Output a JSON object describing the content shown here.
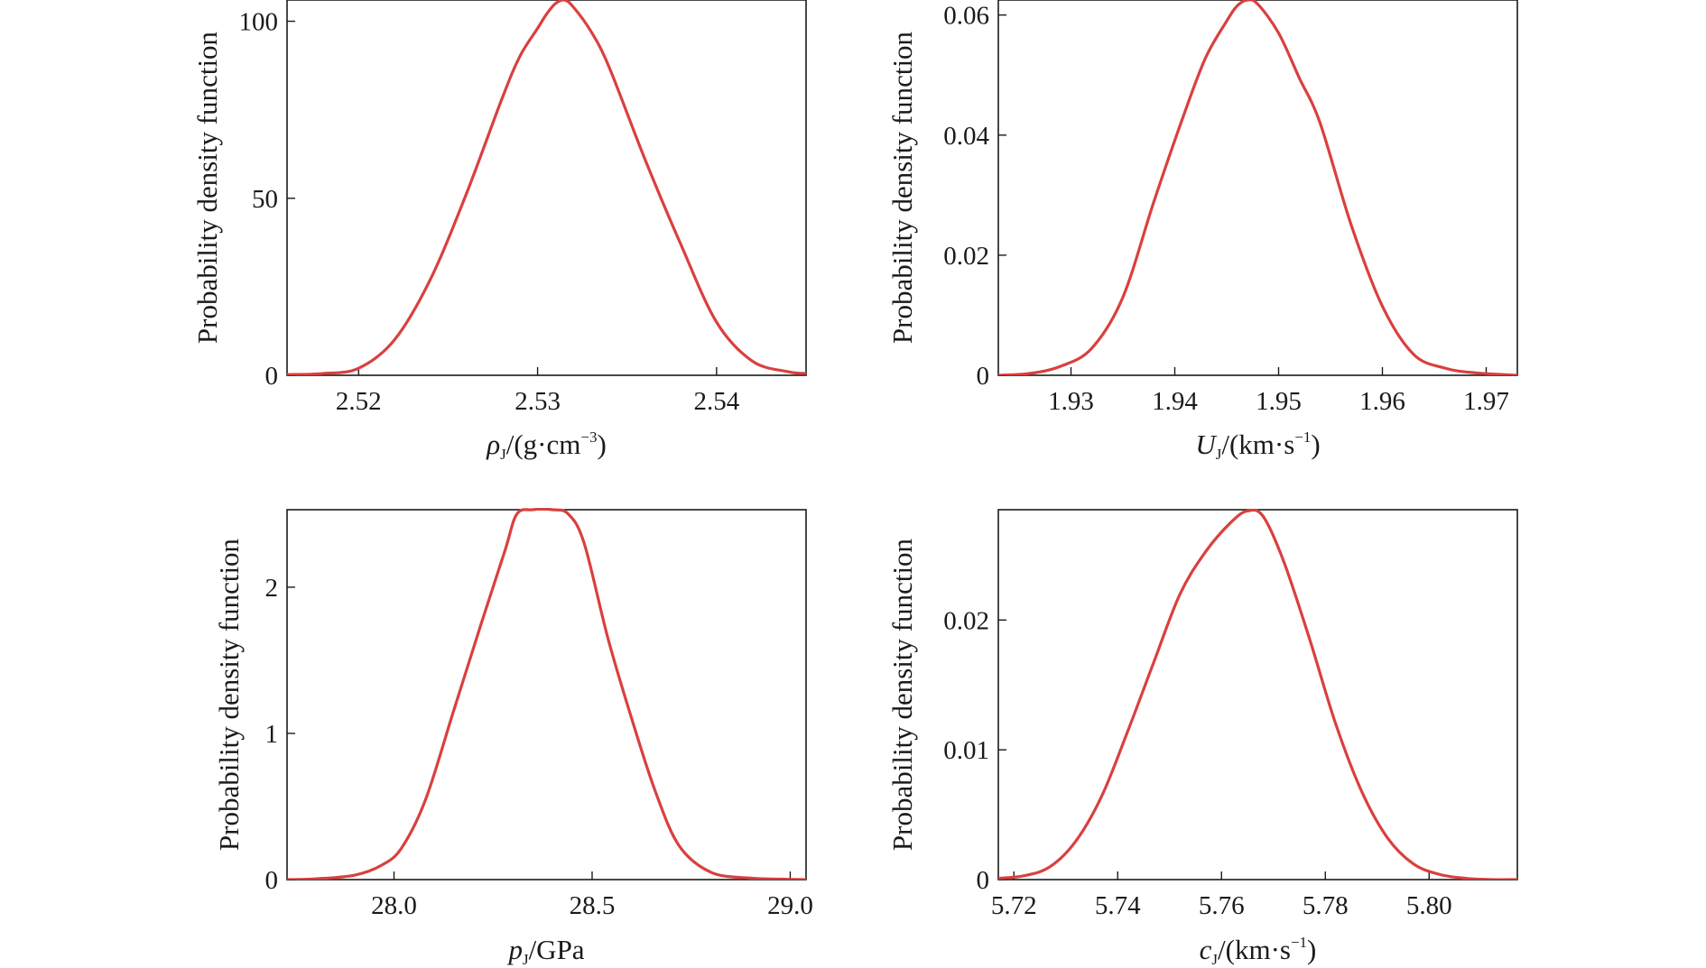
{
  "chart_data": [
    {
      "type": "line",
      "ylabel": "Probability density function",
      "xlabel_var": "ρ",
      "xlabel_sub": "J",
      "xlabel_pre": "/(g·cm",
      "xlabel_sup": "−3",
      "xlabel_post": ")",
      "xlim": [
        2.516,
        2.545
      ],
      "ylim": [
        0,
        106
      ],
      "xticks": [
        2.52,
        2.53,
        2.54
      ],
      "xtick_labels": [
        "2.52",
        "2.53",
        "2.54"
      ],
      "yticks": [
        0,
        50,
        100
      ],
      "ytick_labels": [
        "0",
        "50",
        "100"
      ],
      "line_color": "#d9403f",
      "series": [
        {
          "x": [
            2.516,
            2.518,
            2.52,
            2.522,
            2.524,
            2.526,
            2.528,
            2.529,
            2.53,
            2.5305,
            2.531,
            2.5315,
            2.532,
            2.533,
            2.534,
            2.536,
            2.538,
            2.54,
            2.542,
            2.544,
            2.545
          ],
          "y": [
            0.2,
            0.5,
            2,
            10,
            27,
            51,
            78,
            90,
            98,
            102,
            105,
            106,
            104,
            97,
            87,
            61,
            37,
            15,
            4,
            1,
            0.5
          ]
        }
      ]
    },
    {
      "type": "line",
      "ylabel": "Probability density function",
      "xlabel_var": "U",
      "xlabel_sub": "J",
      "xlabel_pre": "/(km·s",
      "xlabel_sup": "−1",
      "xlabel_post": ")",
      "xlim": [
        1.923,
        1.973
      ],
      "ylim": [
        0,
        0.0625
      ],
      "xticks": [
        1.93,
        1.94,
        1.95,
        1.96,
        1.97
      ],
      "xtick_labels": [
        "1.93",
        "1.94",
        "1.95",
        "1.96",
        "1.97"
      ],
      "yticks": [
        0,
        0.02,
        0.04,
        0.06
      ],
      "ytick_labels": [
        "0",
        "0.02",
        "0.04",
        "0.06"
      ],
      "line_color": "#d9403f",
      "series": [
        {
          "x": [
            1.923,
            1.926,
            1.929,
            1.932,
            1.935,
            1.938,
            1.941,
            1.943,
            1.945,
            1.946,
            1.947,
            1.948,
            1.95,
            1.952,
            1.954,
            1.957,
            1.96,
            1.963,
            1.966,
            1.969,
            1.973
          ],
          "y": [
            0,
            0.0003,
            0.0015,
            0.0045,
            0.013,
            0.029,
            0.044,
            0.053,
            0.059,
            0.0615,
            0.0625,
            0.0618,
            0.057,
            0.0495,
            0.042,
            0.025,
            0.0115,
            0.0035,
            0.0012,
            0.0004,
            0
          ]
        }
      ]
    },
    {
      "type": "line",
      "ylabel": "Probability density function",
      "xlabel_var": "p",
      "xlabel_sub": "J",
      "xlabel_pre": "/GPa",
      "xlabel_sup": "",
      "xlabel_post": "",
      "xlim": [
        27.73,
        29.04
      ],
      "ylim": [
        0,
        2.53
      ],
      "xticks": [
        28.0,
        28.5,
        29.0
      ],
      "xtick_labels": [
        "28.0",
        "28.5",
        "29.0"
      ],
      "yticks": [
        0,
        1,
        2
      ],
      "ytick_labels": [
        "0",
        "1",
        "2"
      ],
      "line_color": "#d9403f",
      "series": [
        {
          "x": [
            27.73,
            27.8,
            27.9,
            27.97,
            28.02,
            28.08,
            28.15,
            28.22,
            28.28,
            28.31,
            28.35,
            28.4,
            28.44,
            28.48,
            28.54,
            28.6,
            28.66,
            28.72,
            28.8,
            28.9,
            29.0,
            29.04
          ],
          "y": [
            0,
            0.005,
            0.03,
            0.1,
            0.22,
            0.55,
            1.15,
            1.75,
            2.25,
            2.5,
            2.53,
            2.53,
            2.5,
            2.3,
            1.65,
            1.1,
            0.6,
            0.23,
            0.05,
            0.01,
            0.002,
            0
          ]
        }
      ]
    },
    {
      "type": "line",
      "ylabel": "Probability density function",
      "xlabel_var": "c",
      "xlabel_sub": "J",
      "xlabel_pre": "/(km·s",
      "xlabel_sup": "−1",
      "xlabel_post": ")",
      "xlim": [
        5.717,
        5.817
      ],
      "ylim": [
        0,
        0.0285
      ],
      "xticks": [
        5.72,
        5.74,
        5.76,
        5.78,
        5.8
      ],
      "xtick_labels": [
        "5.72",
        "5.74",
        "5.76",
        "5.78",
        "5.80"
      ],
      "yticks": [
        0,
        0.01,
        0.02
      ],
      "ytick_labels": [
        "0",
        "0.01",
        "0.02"
      ],
      "line_color": "#d9403f",
      "series": [
        {
          "x": [
            5.717,
            5.722,
            5.727,
            5.732,
            5.737,
            5.742,
            5.747,
            5.752,
            5.757,
            5.762,
            5.765,
            5.768,
            5.772,
            5.777,
            5.782,
            5.787,
            5.792,
            5.797,
            5.802,
            5.807,
            5.812,
            5.817
          ],
          "y": [
            0.0001,
            0.0003,
            0.001,
            0.003,
            0.0065,
            0.0115,
            0.0168,
            0.022,
            0.0253,
            0.0276,
            0.0284,
            0.028,
            0.0245,
            0.0185,
            0.012,
            0.0068,
            0.0032,
            0.0012,
            0.0004,
            0.0001,
            0,
            0
          ]
        }
      ]
    }
  ]
}
